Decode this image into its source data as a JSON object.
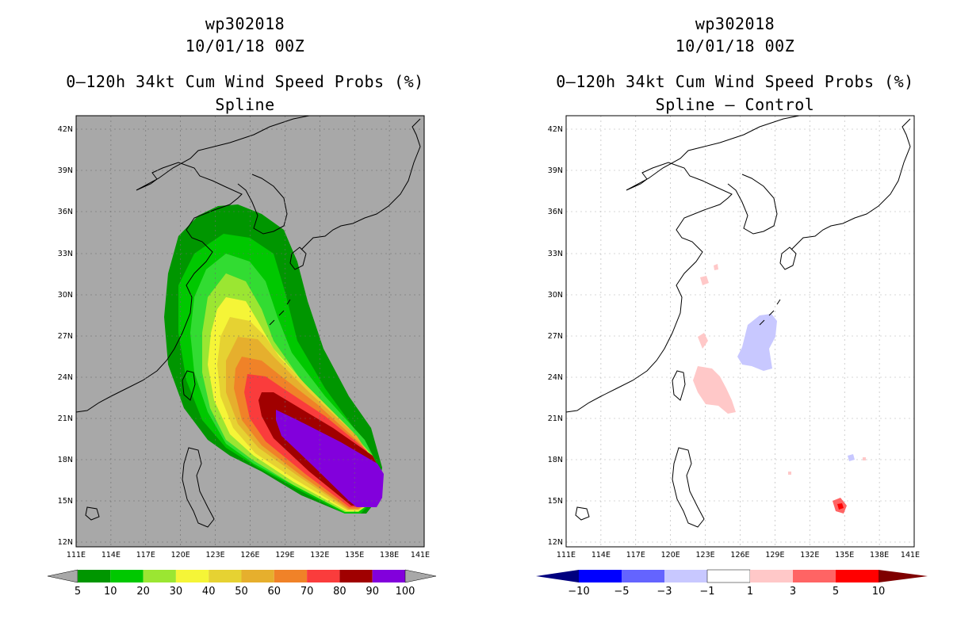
{
  "colors": {
    "ocean_left": "#a8a8a8",
    "background": "#ffffff",
    "land_line": "#000000",
    "grid": "#b0b0b0"
  },
  "left": {
    "storm_id": "wp302018",
    "datetime": "10/01/18 00Z",
    "product": "0–120h 34kt Cum Wind Speed Probs (%)",
    "subtitle": "Spline",
    "lat_labels": [
      "42N",
      "39N",
      "36N",
      "33N",
      "30N",
      "27N",
      "24N",
      "21N",
      "18N",
      "15N",
      "12N"
    ],
    "lon_labels": [
      "111E",
      "114E",
      "117E",
      "120E",
      "123E",
      "126E",
      "129E",
      "132E",
      "135E",
      "138E",
      "141E"
    ],
    "colorbar": {
      "labels": [
        "5",
        "10",
        "20",
        "30",
        "40",
        "50",
        "60",
        "70",
        "80",
        "90",
        "100"
      ],
      "colors": [
        "#009600",
        "#00c800",
        "#32dc32",
        "#9be632",
        "#f5f537",
        "#e6d232",
        "#e6af2d",
        "#f08228",
        "#fa3c3c",
        "#a00000",
        "#8200dc"
      ]
    }
  },
  "right": {
    "storm_id": "wp302018",
    "datetime": "10/01/18 00Z",
    "product": "0–120h 34kt Cum Wind Speed Probs (%)",
    "subtitle": "Spline – Control",
    "lat_labels": [
      "42N",
      "39N",
      "36N",
      "33N",
      "30N",
      "27N",
      "24N",
      "21N",
      "18N",
      "15N",
      "12N"
    ],
    "lon_labels": [
      "111E",
      "114E",
      "117E",
      "120E",
      "123E",
      "126E",
      "129E",
      "132E",
      "135E",
      "138E",
      "141E"
    ],
    "colorbar": {
      "labels": [
        "−10",
        "−5",
        "−3",
        "−1",
        "1",
        "3",
        "5",
        "10"
      ],
      "colors": [
        "#00007f",
        "#0000ff",
        "#6464ff",
        "#c8c8ff",
        "#ffffff",
        "#ffc8c8",
        "#ff6464",
        "#ff0000",
        "#7f0000"
      ]
    }
  }
}
